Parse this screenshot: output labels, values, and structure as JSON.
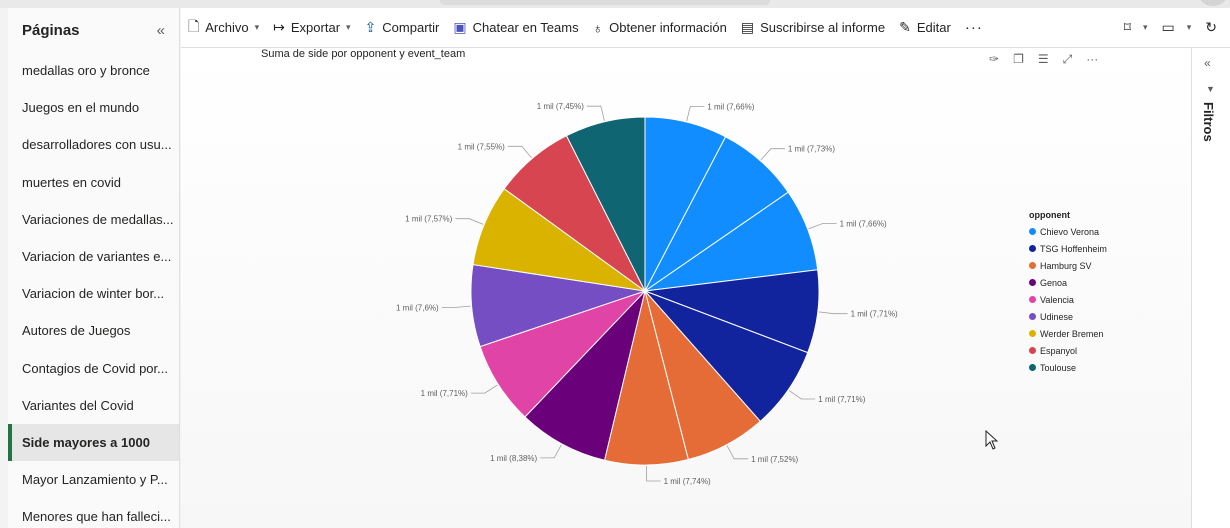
{
  "sidebar": {
    "title": "Páginas",
    "pages": [
      "medallas oro y bronce",
      "Juegos en el mundo",
      "desarrolladores con usu...",
      "muertes en covid",
      "Variaciones de medallas...",
      "Variacion de variantes e...",
      "Variacion de winter bor...",
      "Autores de Juegos",
      "Contagios de Covid por...",
      "Variantes del Covid",
      "Side mayores a 1000",
      "Mayor Lanzamiento y P...",
      "Menores que han falleci..."
    ],
    "active_index": 10
  },
  "ribbon": {
    "archivo": "Archivo",
    "exportar": "Exportar",
    "compartir": "Compartir",
    "teams": "Chatear en Teams",
    "info": "Obtener información",
    "suscribirse": "Suscribirse al informe",
    "editar": "Editar",
    "more": "···"
  },
  "filters": {
    "label": "Filtros"
  },
  "chart_data": {
    "type": "pie",
    "title": "Suma de side por opponent y event_team",
    "legend_title": "opponent",
    "legend": [
      "Chievo Verona",
      "TSG Hoffenheim",
      "Hamburg SV",
      "Genoa",
      "Valencia",
      "Udinese",
      "Werder Bremen",
      "Espanyol",
      "Toulouse"
    ],
    "legend_position": "right",
    "slices": [
      {
        "label": "1 mil (7,66%)",
        "value": 7.66,
        "color": "#118dff"
      },
      {
        "label": "1 mil (7,73%)",
        "value": 7.73,
        "color": "#118dff"
      },
      {
        "label": "1 mil (7,66%)",
        "value": 7.66,
        "color": "#118dff"
      },
      {
        "label": "1 mil (7,71%)",
        "value": 7.71,
        "color": "#12239e"
      },
      {
        "label": "1 mil (7,71%)",
        "value": 7.71,
        "color": "#12239e"
      },
      {
        "label": "1 mil (7,52%)",
        "value": 7.52,
        "color": "#e66c37"
      },
      {
        "label": "1 mil (7,74%)",
        "value": 7.74,
        "color": "#e66c37"
      },
      {
        "label": "1 mil (8,38%)",
        "value": 8.38,
        "color": "#6b007b"
      },
      {
        "label": "1 mil (7,71%)",
        "value": 7.71,
        "color": "#e044a7"
      },
      {
        "label": "1 mil (7,6%)",
        "value": 7.6,
        "color": "#744ec2"
      },
      {
        "label": "1 mil (7,57%)",
        "value": 7.57,
        "color": "#d9b300"
      },
      {
        "label": "1 mil (7,55%)",
        "value": 7.55,
        "color": "#d64550"
      },
      {
        "label": "1 mil (7,45%)",
        "value": 7.45,
        "color": "#0f6672"
      }
    ],
    "legend_colors": [
      "#118dff",
      "#12239e",
      "#e66c37",
      "#6b007b",
      "#e044a7",
      "#744ec2",
      "#d9b300",
      "#d64550",
      "#0f6672"
    ]
  }
}
